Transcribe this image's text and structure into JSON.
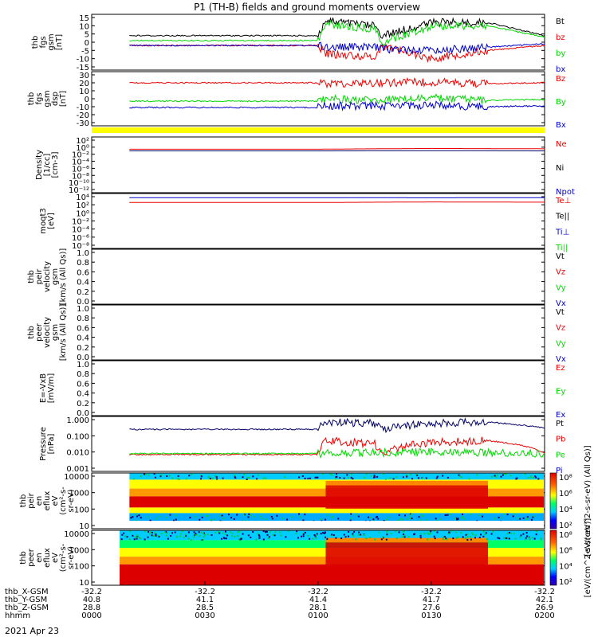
{
  "title": "P1 (TH-B) fields and ground moments overview",
  "colors": {
    "red": "#ee0000",
    "green": "#00d800",
    "blue": "#0000cc",
    "black": "#000000",
    "yellow": "#ffff00",
    "navy": "#000066"
  },
  "panels": [
    {
      "id": "fgs",
      "ylabel": [
        "thb",
        "fgs",
        "gsm",
        "[nT]"
      ],
      "yticks": [
        "15",
        "10",
        "5",
        "0",
        "-5",
        "-10",
        "-15"
      ],
      "legend": [
        {
          "label": "Bt",
          "color": "black"
        },
        {
          "label": "bz",
          "color": "red"
        },
        {
          "label": "by",
          "color": "green"
        },
        {
          "label": "bx",
          "color": "blue"
        }
      ]
    },
    {
      "id": "fgs_gsm",
      "ylabel": [
        "thb",
        "fgs",
        "gsm",
        "dsp",
        "[nT]"
      ],
      "yticks": [
        "30",
        "20",
        "10",
        "0",
        "-10",
        "-20",
        "-30"
      ],
      "legend": [
        {
          "label": "Bz",
          "color": "red"
        },
        {
          "label": "By",
          "color": "green"
        },
        {
          "label": "Bx",
          "color": "blue"
        }
      ]
    },
    {
      "id": "density",
      "ylabel": [
        "Density",
        "[1/cc]",
        "[cm-3]"
      ],
      "yticks": [
        "10²",
        "10⁰",
        "10⁻²",
        "10⁻⁴",
        "10⁻⁶",
        "10⁻⁸",
        "10⁻¹⁰",
        "10⁻¹²"
      ],
      "legend": [
        {
          "label": "Ne",
          "color": "red"
        },
        {
          "label": "Ni",
          "color": "black"
        },
        {
          "label": "Npot",
          "color": "blue"
        }
      ]
    },
    {
      "id": "temp",
      "ylabel": [
        "moqt3",
        "[eV]"
      ],
      "yticks": [
        "10⁴",
        "10²",
        "10⁰",
        "10⁻²",
        "10⁻⁴",
        "10⁻⁶",
        "10⁻⁸"
      ],
      "legend": [
        {
          "label": "Te⊥",
          "color": "red"
        },
        {
          "label": "Te||",
          "color": "black"
        },
        {
          "label": "Ti⊥",
          "color": "blue"
        },
        {
          "label": "Ti||",
          "color": "green"
        }
      ]
    },
    {
      "id": "peir_vel",
      "ylabel": [
        "thb",
        "peir",
        "velocity",
        "gsm",
        "[km/s (All Qs)]"
      ],
      "yticks": [
        "1.0",
        "0.8",
        "0.6",
        "0.4",
        "0.2",
        "0.0"
      ],
      "legend": [
        {
          "label": "Vt",
          "color": "black"
        },
        {
          "label": "Vz",
          "color": "red"
        },
        {
          "label": "Vy",
          "color": "green"
        },
        {
          "label": "Vx",
          "color": "blue"
        }
      ]
    },
    {
      "id": "peer_vel",
      "ylabel": [
        "thb",
        "peer",
        "velocity",
        "gsm",
        "[km/s (All Qs)]"
      ],
      "yticks": [
        "1.0",
        "0.8",
        "0.6",
        "0.4",
        "0.2",
        "0.0"
      ],
      "legend": [
        {
          "label": "Vt",
          "color": "black"
        },
        {
          "label": "Vz",
          "color": "red"
        },
        {
          "label": "Vy",
          "color": "green"
        },
        {
          "label": "Vx",
          "color": "blue"
        }
      ]
    },
    {
      "id": "efield",
      "ylabel": [
        "E=-VxB",
        "[mV/m]"
      ],
      "yticks": [
        "1.0",
        "0.8",
        "0.6",
        "0.4",
        "0.2",
        "0.0"
      ],
      "legend": [
        {
          "label": "Ez",
          "color": "red"
        },
        {
          "label": "Ey",
          "color": "green"
        },
        {
          "label": "Ex",
          "color": "blue"
        }
      ]
    },
    {
      "id": "pressure",
      "ylabel": [
        "Pressure",
        "[nPa]"
      ],
      "yticks": [
        "1.000",
        "0.100",
        "0.010",
        "0.001"
      ],
      "legend": [
        {
          "label": "Pt",
          "color": "black"
        },
        {
          "label": "Pb",
          "color": "red"
        },
        {
          "label": "Pe",
          "color": "green"
        },
        {
          "label": "Pi",
          "color": "blue"
        }
      ]
    },
    {
      "id": "peir_eflux",
      "ylabel": [
        "thb",
        "peir",
        "en",
        "eflux",
        "eV",
        "(cm²-s-",
        "sr-eV)"
      ],
      "yticks": [
        "10000",
        "1000",
        "100",
        "10"
      ],
      "colorbar": {
        "ticks": [
          "10⁸",
          "10⁶",
          "10⁴",
          "10²"
        ],
        "label": "[eV/(cm^2-s-sr-eV) (All Qs)]"
      }
    },
    {
      "id": "peer_eflux",
      "ylabel": [
        "thb",
        "peer",
        "en",
        "eflux",
        "eV",
        "(cm²-s-",
        "sr-eV)"
      ],
      "yticks": [
        "10000",
        "1000",
        "100",
        "10"
      ],
      "colorbar": {
        "ticks": [
          "10⁸",
          "10⁶",
          "10⁴",
          "10²"
        ],
        "label": "[eV/(cm^2-s-sr-eV)]"
      }
    }
  ],
  "xaxis": {
    "rows": [
      {
        "name": "thb_X-GSM",
        "values": [
          "-32.2",
          "-32.2",
          "-32.2",
          "-32.2",
          "-32.2"
        ]
      },
      {
        "name": "thb_Y-GSM",
        "values": [
          "40.8",
          "41.1",
          "41.4",
          "41.7",
          "42.1"
        ]
      },
      {
        "name": "thb_Z-GSM",
        "values": [
          "28.8",
          "28.5",
          "28.1",
          "27.6",
          "26.9"
        ]
      },
      {
        "name": "hhmm",
        "values": [
          "0000",
          "0030",
          "0100",
          "0130",
          "0200"
        ]
      }
    ],
    "date": "2021 Apr 23"
  },
  "chart_data": {
    "type": "line",
    "x_unit": "hhmm",
    "time_range": [
      "0000",
      "0200"
    ],
    "data_coverage": [
      "0010",
      "0200"
    ],
    "series": [
      {
        "name": "Bt",
        "panel": "fgs",
        "x": [
          "0010",
          "0100",
          "0102",
          "0115",
          "0117",
          "0130",
          "0145",
          "0200"
        ],
        "values": [
          4,
          4,
          13,
          10,
          4,
          12,
          12,
          4
        ]
      },
      {
        "name": "bz",
        "panel": "fgs",
        "x": [
          "0010",
          "0100",
          "0102",
          "0115",
          "0117",
          "0130",
          "0145",
          "0200"
        ],
        "values": [
          -2,
          -2,
          -7,
          -9,
          -2,
          -10,
          -5,
          -2
        ]
      },
      {
        "name": "by",
        "panel": "fgs",
        "x": [
          "0010",
          "0100",
          "0102",
          "0115",
          "0117",
          "0130",
          "0145",
          "0200"
        ],
        "values": [
          1,
          1,
          11,
          8,
          0,
          10,
          10,
          3
        ]
      },
      {
        "name": "bx",
        "panel": "fgs",
        "x": [
          "0010",
          "0100",
          "0102",
          "0115",
          "0117",
          "0130",
          "0145",
          "0200"
        ],
        "values": [
          -2,
          -2,
          -3,
          -3,
          -4,
          -5,
          -3,
          -1
        ]
      },
      {
        "name": "Bz",
        "panel": "fgs_gsm",
        "x": [
          "0010",
          "0100",
          "0102",
          "0115",
          "0130",
          "0145",
          "0200"
        ],
        "values": [
          20,
          20,
          19,
          20,
          21,
          19,
          20
        ]
      },
      {
        "name": "By",
        "panel": "fgs_gsm",
        "x": [
          "0010",
          "0100",
          "0102",
          "0115",
          "0130",
          "0145",
          "0200"
        ],
        "values": [
          -3,
          -3,
          0,
          -2,
          1,
          -2,
          -1
        ]
      },
      {
        "name": "Bx",
        "panel": "fgs_gsm",
        "x": [
          "0010",
          "0100",
          "0102",
          "0115",
          "0130",
          "0145",
          "0200"
        ],
        "values": [
          -11,
          -11,
          -9,
          -9,
          -8,
          -10,
          -9
        ]
      },
      {
        "name": "Ne",
        "panel": "density",
        "x": [
          "0010",
          "0100",
          "0130",
          "0200"
        ],
        "values": [
          0.3,
          0.3,
          0.5,
          0.4
        ]
      },
      {
        "name": "Ni",
        "panel": "density",
        "x": [
          "0010",
          "0100",
          "0130",
          "0200"
        ],
        "values": [
          0.1,
          0.1,
          0.12,
          0.1
        ]
      },
      {
        "name": "Te⊥",
        "panel": "temp",
        "x": [
          "0010",
          "0100",
          "0130",
          "0200"
        ],
        "values": [
          500,
          500,
          700,
          600
        ]
      },
      {
        "name": "Ti⊥",
        "panel": "temp",
        "x": [
          "0010",
          "0100",
          "0130",
          "0200"
        ],
        "values": [
          9000,
          9000,
          8000,
          9000
        ]
      },
      {
        "name": "Pt",
        "panel": "pressure",
        "x": [
          "0010",
          "0100",
          "0102",
          "0115",
          "0117",
          "0130",
          "0145",
          "0200"
        ],
        "values": [
          0.25,
          0.25,
          0.7,
          0.6,
          0.25,
          0.6,
          0.7,
          0.3
        ]
      },
      {
        "name": "Pb",
        "panel": "pressure",
        "x": [
          "0010",
          "0100",
          "0102",
          "0115",
          "0117",
          "0130",
          "0145",
          "0200"
        ],
        "values": [
          0.007,
          0.007,
          0.05,
          0.03,
          0.006,
          0.04,
          0.05,
          0.008
        ]
      },
      {
        "name": "Pe",
        "panel": "pressure",
        "x": [
          "0010",
          "0100",
          "0130",
          "0200"
        ],
        "values": [
          0.008,
          0.008,
          0.01,
          0.008
        ]
      }
    ]
  }
}
